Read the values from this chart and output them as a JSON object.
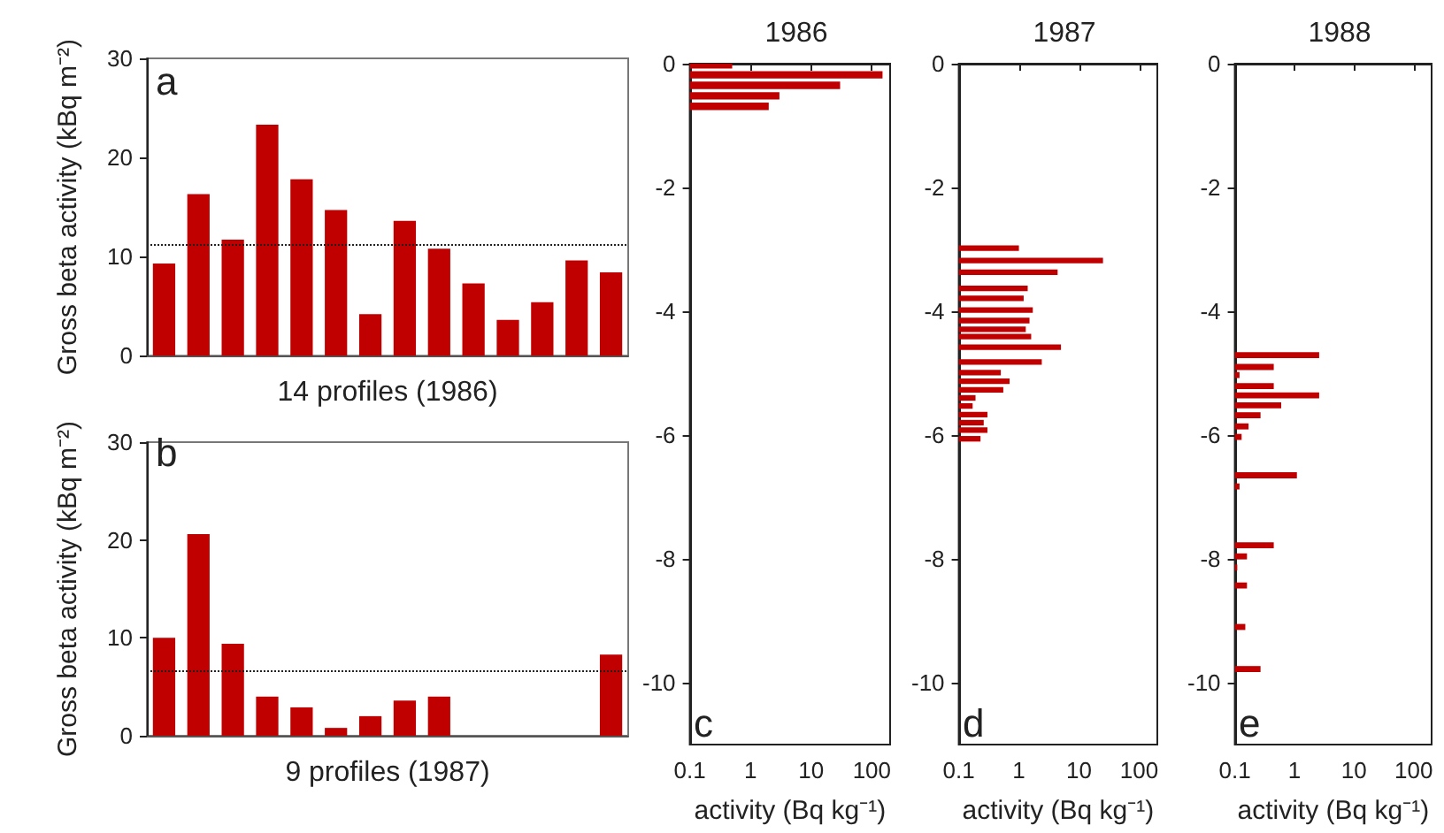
{
  "chart_data": [
    {
      "type": "bar",
      "xlabel": "14 profiles (1986)",
      "ylabel": "Gross beta activity (kBq m⁻²)",
      "annotations": [
        "a"
      ],
      "categories": [
        null,
        null,
        null,
        null,
        null,
        null,
        null,
        null,
        null,
        null,
        null,
        null,
        null,
        null
      ],
      "values": [
        9.3,
        16.3,
        11.7,
        23.3,
        17.8,
        14.7,
        4.2,
        13.6,
        10.8,
        7.3,
        3.6,
        5.4,
        9.6,
        8.4
      ],
      "color": "#c00000",
      "ylim": [
        0,
        30
      ],
      "yticks": [
        0,
        10,
        20,
        30
      ],
      "ref_lines": [
        {
          "axis": "y",
          "value": 11.2,
          "line_style": "dotted"
        }
      ]
    },
    {
      "type": "bar",
      "xlabel": "9 profiles (1987)",
      "ylabel": "Gross beta activity (kBq m⁻²)",
      "annotations": [
        "b"
      ],
      "categories": [
        null,
        null,
        null,
        null,
        null,
        null,
        null,
        null,
        null,
        null,
        null,
        null,
        null,
        null
      ],
      "values": [
        10.0,
        20.6,
        9.4,
        4.0,
        2.9,
        0.8,
        2.0,
        3.6,
        4.0,
        null,
        null,
        null,
        null,
        8.3
      ],
      "color": "#c00000",
      "ylim": [
        0,
        30
      ],
      "yticks": [
        0,
        10,
        20,
        30
      ],
      "ref_lines": [
        {
          "axis": "y",
          "value": 6.6,
          "line_style": "dotted"
        }
      ]
    },
    {
      "type": "bar",
      "orientation": "horizontal",
      "title": "1986",
      "xlabel": "activity (Bq kg⁻¹)",
      "annotations": [
        "c"
      ],
      "x": [
        -0.02,
        -0.18,
        -0.35,
        -0.52,
        -0.69
      ],
      "values": [
        0.5,
        150,
        30,
        3.0,
        2.0
      ],
      "color": "#c00000",
      "log": "x",
      "xlim": [
        0.1,
        200
      ],
      "xticks": [
        0.1,
        1,
        10,
        100
      ],
      "ylim": [
        -11,
        0
      ],
      "yticks": [
        0,
        -2,
        -4,
        -6,
        -8,
        -10
      ]
    },
    {
      "type": "bar",
      "orientation": "horizontal",
      "title": "1987",
      "xlabel": "activity (Bq kg⁻¹)",
      "annotations": [
        "d"
      ],
      "x": [
        -2.98,
        -3.18,
        -3.37,
        -3.63,
        -3.79,
        -3.98,
        -4.15,
        -4.29,
        -4.41,
        -4.58,
        -4.82,
        -4.99,
        -5.13,
        -5.27,
        -5.4,
        -5.53,
        -5.67,
        -5.8,
        -5.92,
        -6.06
      ],
      "values": [
        1.0,
        25,
        4.4,
        1.4,
        1.2,
        1.7,
        1.5,
        1.3,
        1.6,
        5.0,
        2.4,
        0.5,
        0.7,
        0.55,
        0.19,
        0.17,
        0.3,
        0.26,
        0.3,
        0.23
      ],
      "color": "#c00000",
      "log": "x",
      "xlim": [
        0.1,
        200
      ],
      "xticks": [
        0.1,
        1,
        10,
        100
      ],
      "ylim": [
        -11,
        0
      ],
      "yticks": [
        0,
        -2,
        -4,
        -6,
        -8,
        -10
      ]
    },
    {
      "type": "bar",
      "orientation": "horizontal",
      "title": "1988",
      "xlabel": "activity (Bq kg⁻¹)",
      "annotations": [
        "e"
      ],
      "x": [
        -4.71,
        -4.9,
        -5.03,
        -5.21,
        -5.36,
        -5.52,
        -5.68,
        -5.86,
        -6.03,
        -6.65,
        -6.83,
        -7.78,
        -7.96,
        -8.14,
        -8.43,
        -9.1,
        -9.78
      ],
      "values": [
        2.6,
        0.45,
        0.12,
        0.45,
        2.6,
        0.6,
        0.27,
        0.17,
        0.13,
        1.1,
        0.12,
        0.45,
        0.16,
        0.11,
        0.16,
        0.15,
        0.27
      ],
      "color": "#c00000",
      "log": "x",
      "xlim": [
        0.1,
        200
      ],
      "xticks": [
        0.1,
        1,
        10,
        100
      ],
      "ylim": [
        -11,
        0
      ],
      "yticks": [
        0,
        -2,
        -4,
        -6,
        -8,
        -10
      ]
    }
  ]
}
